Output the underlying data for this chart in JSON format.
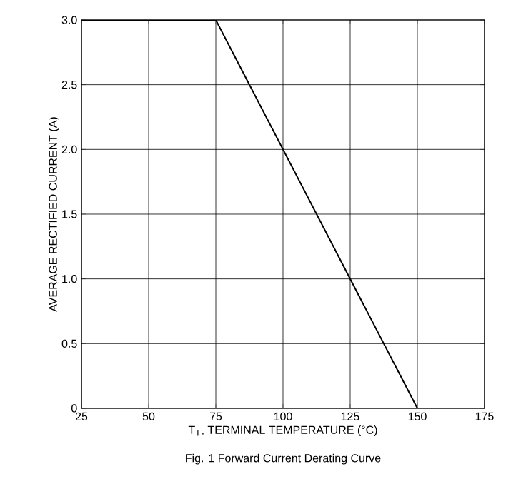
{
  "chart_data": {
    "type": "line",
    "xlabel": "T$_{T}$, TERMINAL TEMPERATURE (°C)",
    "ylabel": "AVERAGE RECTIFIED CURRENT (A)",
    "x": [
      25,
      75,
      150
    ],
    "series": [
      {
        "color": "#000000",
        "values": [
          3,
          3,
          0
        ]
      }
    ],
    "xlim": [
      25,
      175
    ],
    "xticks": [
      25,
      50,
      75,
      100,
      125,
      150,
      175
    ],
    "ylim": [
      0,
      3
    ],
    "yticks": [
      0,
      0.5,
      {
        "value": 1,
        "label": "1.0"
      },
      1.5,
      {
        "value": 2,
        "label": "2.0"
      },
      2.5,
      {
        "value": 3,
        "label": "3.0"
      }
    ],
    "grid": true,
    "marker": "none",
    "line_style": "solid",
    "annotations": [
      "Fig. 1  Forward Current Derating Curve"
    ]
  }
}
